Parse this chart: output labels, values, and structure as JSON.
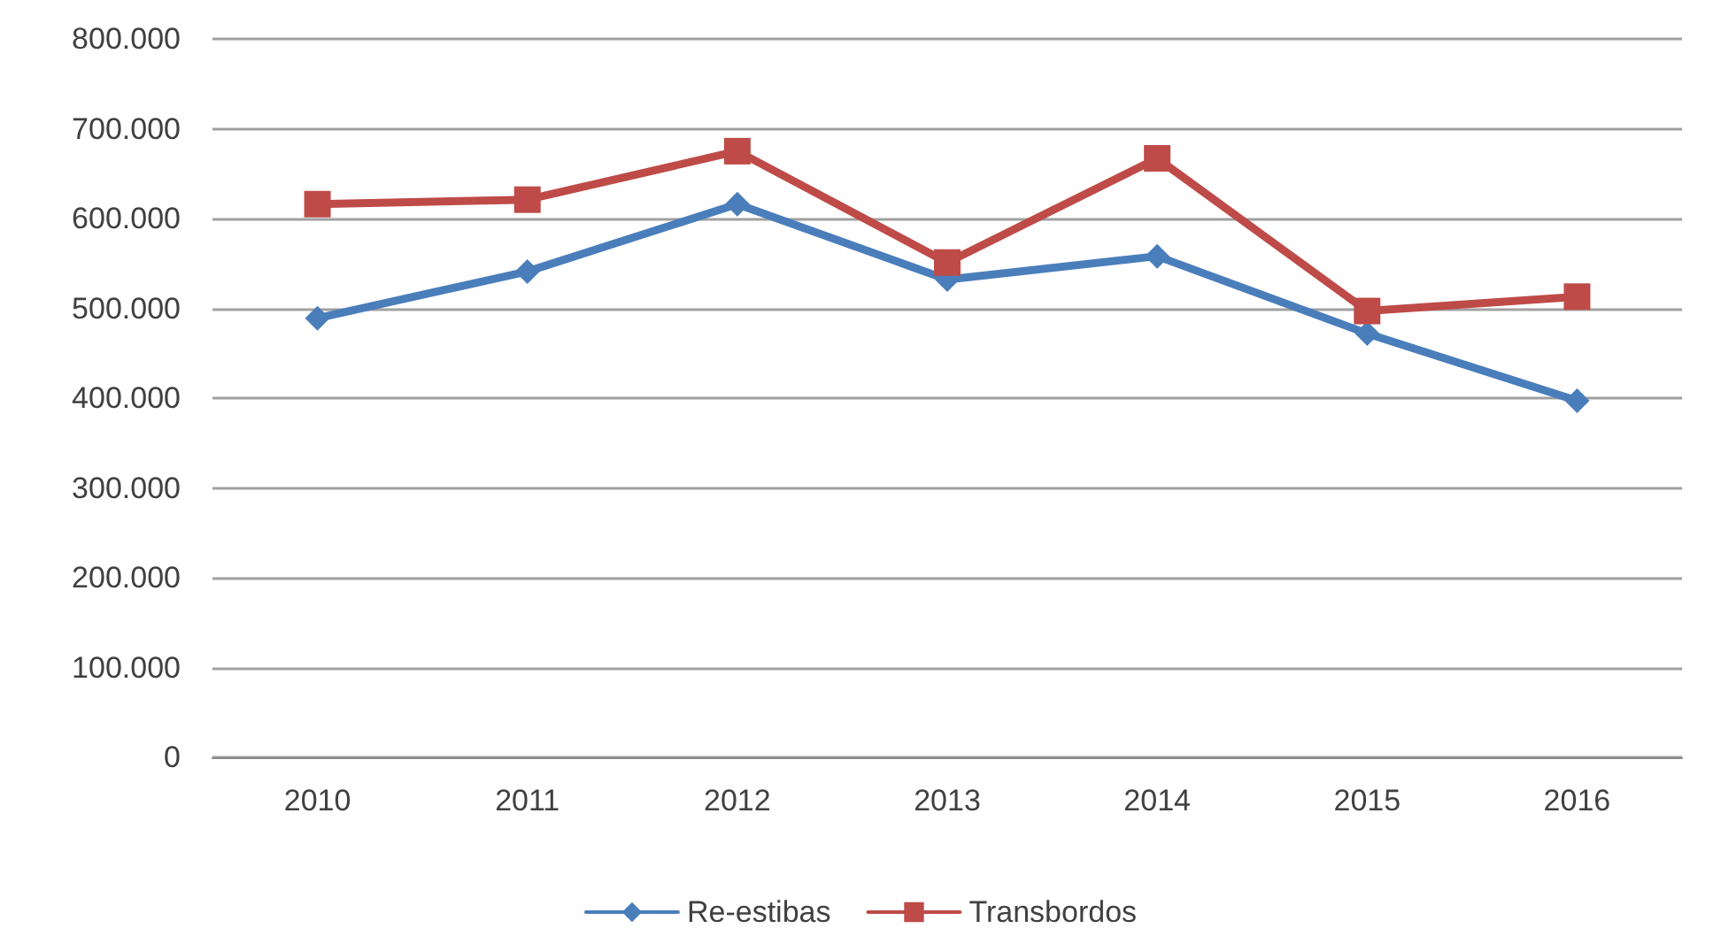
{
  "chart_data": {
    "type": "line",
    "categories": [
      "2010",
      "2011",
      "2012",
      "2013",
      "2014",
      "2015",
      "2016"
    ],
    "series": [
      {
        "name": "Re-estibas",
        "color": "#4a7ebb",
        "marker": "diamond",
        "values": [
          489000,
          541000,
          616000,
          532000,
          558000,
          472000,
          397000
        ]
      },
      {
        "name": "Transbordos",
        "color": "#be4b48",
        "marker": "square",
        "values": [
          616000,
          621000,
          675000,
          551000,
          667000,
          497000,
          513000
        ]
      }
    ],
    "ylim": [
      0,
      800000
    ],
    "yticks": [
      0,
      {
        "value": 100000,
        "label": "100.000"
      },
      {
        "value": 200000,
        "label": "200.000"
      },
      {
        "value": 300000,
        "label": "300.000"
      },
      {
        "value": 400000,
        "label": "400.000"
      },
      {
        "value": 500000,
        "label": "500.000"
      },
      {
        "value": 600000,
        "label": "600.000"
      },
      {
        "value": 700000,
        "label": "700.000"
      },
      {
        "value": 800000,
        "label": "800.000"
      }
    ],
    "grid": "y",
    "legend": "bottom",
    "line_style": "solid"
  }
}
